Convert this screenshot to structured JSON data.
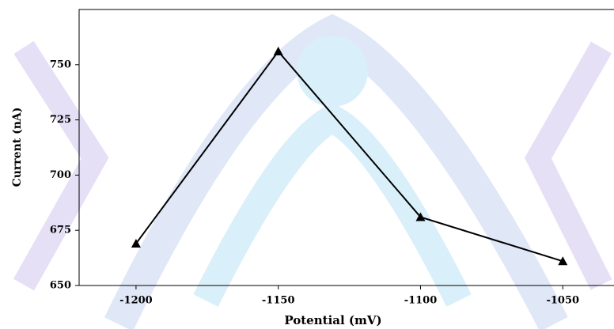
{
  "chart_data": {
    "type": "line",
    "x_label": "Potential (mV)",
    "y_label": "Current (nA)",
    "x": [
      -1200,
      -1150,
      -1100,
      -1050
    ],
    "series": [
      {
        "name": "Current",
        "color": "#000000",
        "values": [
          669,
          756,
          681,
          661
        ]
      }
    ],
    "xlim": [
      -1220,
      -1032
    ],
    "ylim": [
      650,
      775
    ],
    "xticks": [
      -1200,
      -1150,
      -1100,
      -1050
    ],
    "yticks": [
      650,
      675,
      700,
      725,
      750
    ]
  }
}
